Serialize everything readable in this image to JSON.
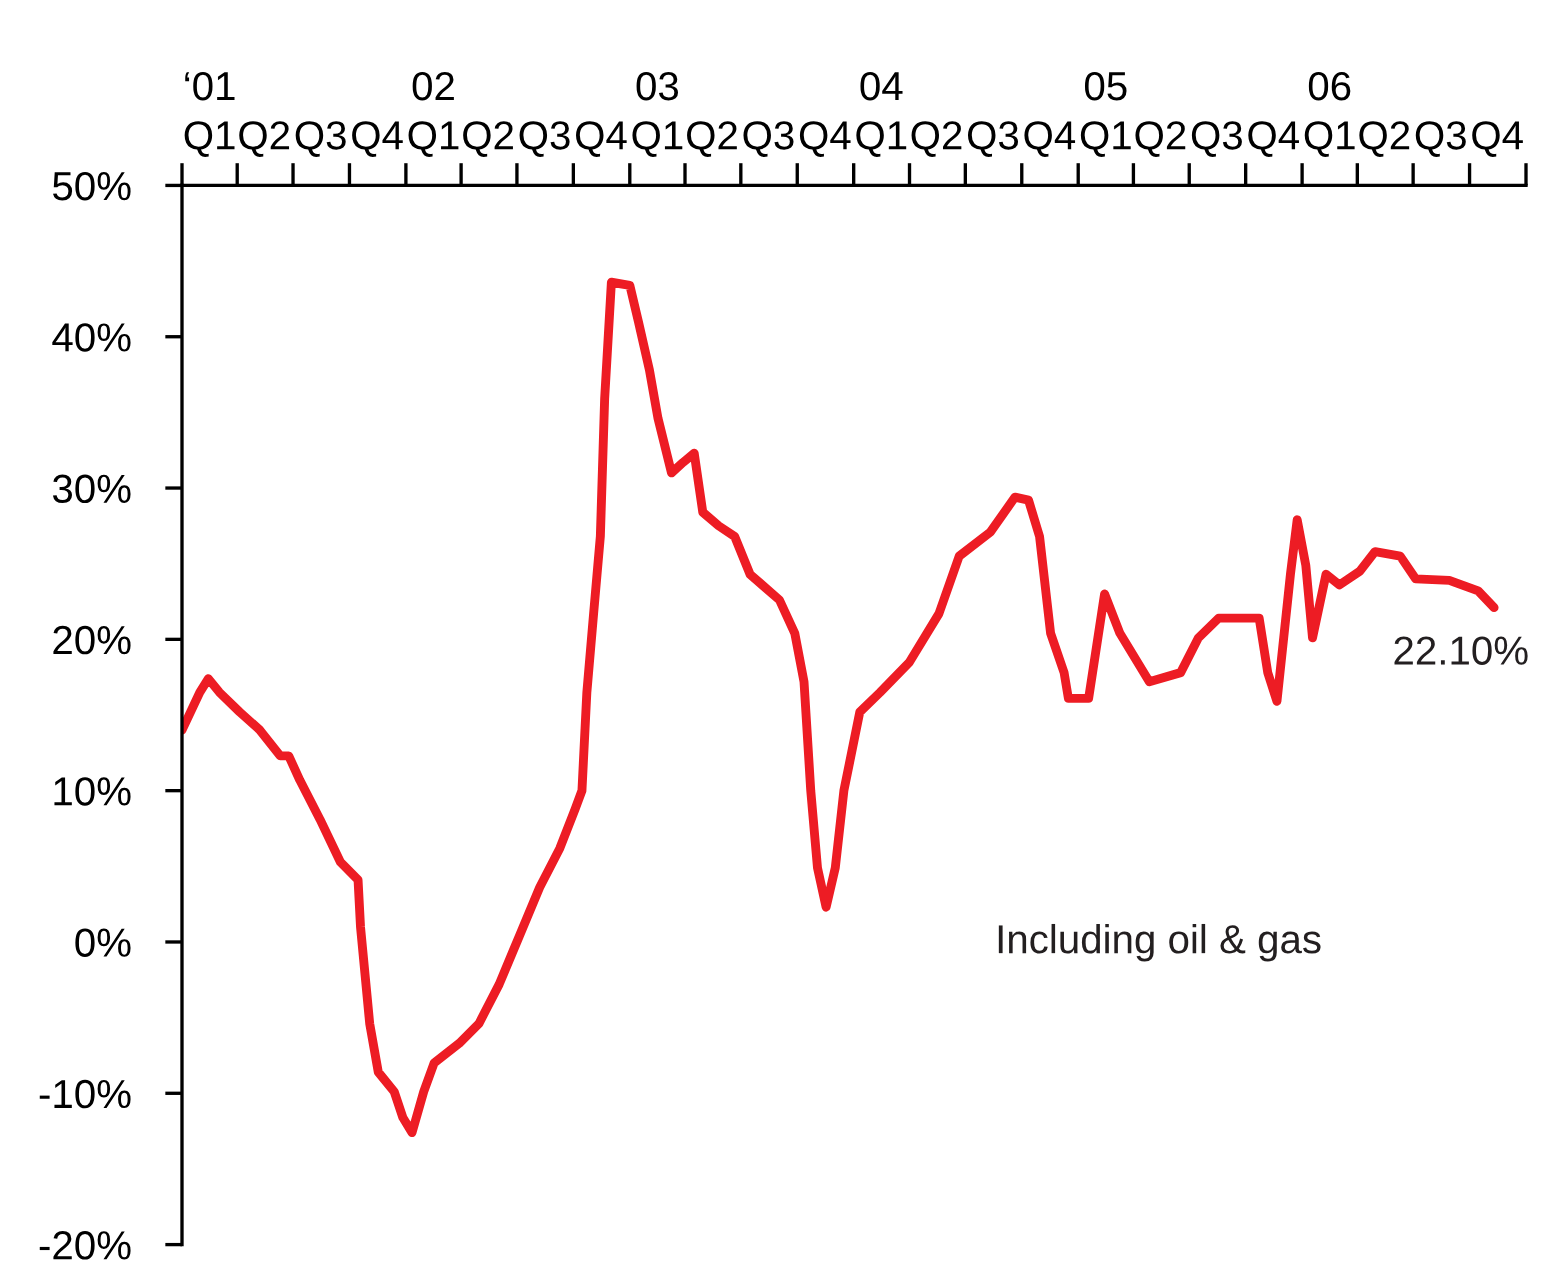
{
  "chart_data": {
    "type": "line",
    "x": [
      "2001-01-01",
      "2001-01-30",
      "2001-02-13",
      "2001-03-03",
      "2001-04-05",
      "2001-05-08",
      "2001-06-10",
      "2001-06-24",
      "2001-07-12",
      "2001-08-14",
      "2001-09-16",
      "2001-10-15",
      "2001-10-19",
      "2001-11-03",
      "2001-11-17",
      "2001-12-13",
      "2001-12-27",
      "2002-01-11",
      "2002-01-30",
      "2002-02-16",
      "2002-03-29",
      "2002-04-30",
      "2002-06-02",
      "2002-07-05",
      "2002-08-07",
      "2002-09-09",
      "2002-10-04",
      "2002-10-15",
      "2002-10-23",
      "2002-11-03",
      "2002-11-14",
      "2002-11-21",
      "2002-12-02",
      "2003-01-01",
      "2003-01-15",
      "2003-02-02",
      "2003-02-16",
      "2003-03-10",
      "2003-03-29",
      "2003-04-16",
      "2003-04-30",
      "2003-05-26",
      "2003-06-21",
      "2003-07-16",
      "2003-09-02",
      "2003-09-27",
      "2003-10-12",
      "2003-10-23",
      "2003-11-03",
      "2003-11-17",
      "2003-12-02",
      "2003-12-16",
      "2004-01-11",
      "2004-02-13",
      "2004-04-01",
      "2004-05-19",
      "2004-06-21",
      "2004-08-11",
      "2004-09-20",
      "2004-10-12",
      "2004-10-30",
      "2004-11-17",
      "2004-12-09",
      "2004-12-16",
      "2005-01-18",
      "2005-02-13",
      "2005-03-10",
      "2005-04-27",
      "2005-06-17",
      "2005-07-16",
      "2005-08-18",
      "2005-10-23",
      "2005-11-06",
      "2005-11-21",
      "2005-12-13",
      "2005-12-24",
      "2006-01-07",
      "2006-01-18",
      "2006-02-09",
      "2006-03-03",
      "2006-04-05",
      "2006-04-30",
      "2006-06-10",
      "2006-07-05",
      "2006-08-29",
      "2006-10-15",
      "2006-11-10"
    ],
    "series": [
      {
        "color": "#ed1c24",
        "values": [
          14,
          16.5,
          17.4,
          16.5,
          15.2,
          14,
          12.3,
          12.3,
          10.7,
          8.1,
          5.3,
          4.1,
          1,
          -5.4,
          -8.6,
          -9.9,
          -11.6,
          -12.6,
          -9.9,
          -8,
          -6.7,
          -5.4,
          -2.8,
          0.4,
          3.6,
          6.2,
          8.8,
          10,
          16.5,
          21.7,
          26.8,
          35.9,
          43.6,
          43.4,
          41,
          37.8,
          34.6,
          31,
          31.7,
          32.3,
          28.4,
          27.5,
          26.8,
          24.3,
          22.6,
          20.4,
          17.2,
          10,
          4.9,
          2.3,
          4.9,
          10,
          15.2,
          16.5,
          18.5,
          21.7,
          25.5,
          27.1,
          29.4,
          29.2,
          26.8,
          20.4,
          17.8,
          16.1,
          16.1,
          23,
          20.4,
          17.2,
          17.8,
          20.1,
          21.4,
          21.4,
          17.8,
          15.9,
          24.3,
          27.9,
          24.9,
          20.1,
          24.3,
          23.6,
          24.5,
          25.8,
          25.5,
          24,
          23.9,
          23.2,
          22.1
        ]
      }
    ],
    "xlim": [
      "2001-01-01",
      "2007-01-01"
    ],
    "xticks": [
      {
        "value": "2001-01-01",
        "label": null
      },
      {
        "value": "2001-02-15",
        "label": "‘01\nQ1"
      },
      {
        "value": "2001-04-01",
        "label": null
      },
      {
        "value": "2001-05-15",
        "label": "Q2"
      },
      {
        "value": "2001-07-01",
        "label": null
      },
      {
        "value": "2001-08-15",
        "label": "Q3"
      },
      {
        "value": "2001-10-01",
        "label": null
      },
      {
        "value": "2001-11-15",
        "label": "Q4"
      },
      {
        "value": "2002-01-01",
        "label": null
      },
      {
        "value": "2002-02-15",
        "label": "02\nQ1"
      },
      {
        "value": "2002-04-01",
        "label": null
      },
      {
        "value": "2002-05-15",
        "label": "Q2"
      },
      {
        "value": "2002-07-01",
        "label": null
      },
      {
        "value": "2002-08-15",
        "label": "Q3"
      },
      {
        "value": "2002-10-01",
        "label": null
      },
      {
        "value": "2002-11-15",
        "label": "Q4"
      },
      {
        "value": "2003-01-01",
        "label": null
      },
      {
        "value": "2003-02-15",
        "label": "03\nQ1"
      },
      {
        "value": "2003-04-01",
        "label": null
      },
      {
        "value": "2003-05-15",
        "label": "Q2"
      },
      {
        "value": "2003-07-01",
        "label": null
      },
      {
        "value": "2003-08-15",
        "label": "Q3"
      },
      {
        "value": "2003-10-01",
        "label": null
      },
      {
        "value": "2003-11-15",
        "label": "Q4"
      },
      {
        "value": "2004-01-01",
        "label": null
      },
      {
        "value": "2004-02-15",
        "label": "04\nQ1"
      },
      {
        "value": "2004-04-01",
        "label": null
      },
      {
        "value": "2004-05-15",
        "label": "Q2"
      },
      {
        "value": "2004-07-01",
        "label": null
      },
      {
        "value": "2004-08-15",
        "label": "Q3"
      },
      {
        "value": "2004-10-01",
        "label": null
      },
      {
        "value": "2004-11-15",
        "label": "Q4"
      },
      {
        "value": "2005-01-01",
        "label": null
      },
      {
        "value": "2005-02-15",
        "label": "05\nQ1"
      },
      {
        "value": "2005-04-01",
        "label": null
      },
      {
        "value": "2005-05-15",
        "label": "Q2"
      },
      {
        "value": "2005-07-01",
        "label": null
      },
      {
        "value": "2005-08-15",
        "label": "Q3"
      },
      {
        "value": "2005-10-01",
        "label": null
      },
      {
        "value": "2005-11-15",
        "label": "Q4"
      },
      {
        "value": "2006-01-01",
        "label": null
      },
      {
        "value": "2006-02-15",
        "label": "06\nQ1"
      },
      {
        "value": "2006-04-01",
        "label": null
      },
      {
        "value": "2006-05-15",
        "label": "Q2"
      },
      {
        "value": "2006-07-01",
        "label": null
      },
      {
        "value": "2006-08-15",
        "label": "Q3"
      },
      {
        "value": "2006-10-01",
        "label": null
      },
      {
        "value": "2006-11-15",
        "label": "Q4"
      },
      {
        "value": "2007-01-01",
        "label": null
      }
    ],
    "ylim": [
      -20,
      50
    ],
    "yticks": [
      {
        "value": -20,
        "label": "-20%"
      },
      {
        "value": -10,
        "label": "-10%"
      },
      {
        "value": 0,
        "label": "0%"
      },
      {
        "value": 10,
        "label": "10%"
      },
      {
        "value": 20,
        "label": "20%"
      },
      {
        "value": 30,
        "label": "30%"
      },
      {
        "value": 40,
        "label": "40%"
      },
      {
        "value": 50,
        "label": "50%"
      }
    ],
    "annotations": [
      {
        "text": "22.10%",
        "x": "2006-11-10",
        "y": 22.1
      },
      "Including oil & gas"
    ],
    "grid": false,
    "legend": false,
    "marker": "none",
    "line_style": "solid"
  }
}
